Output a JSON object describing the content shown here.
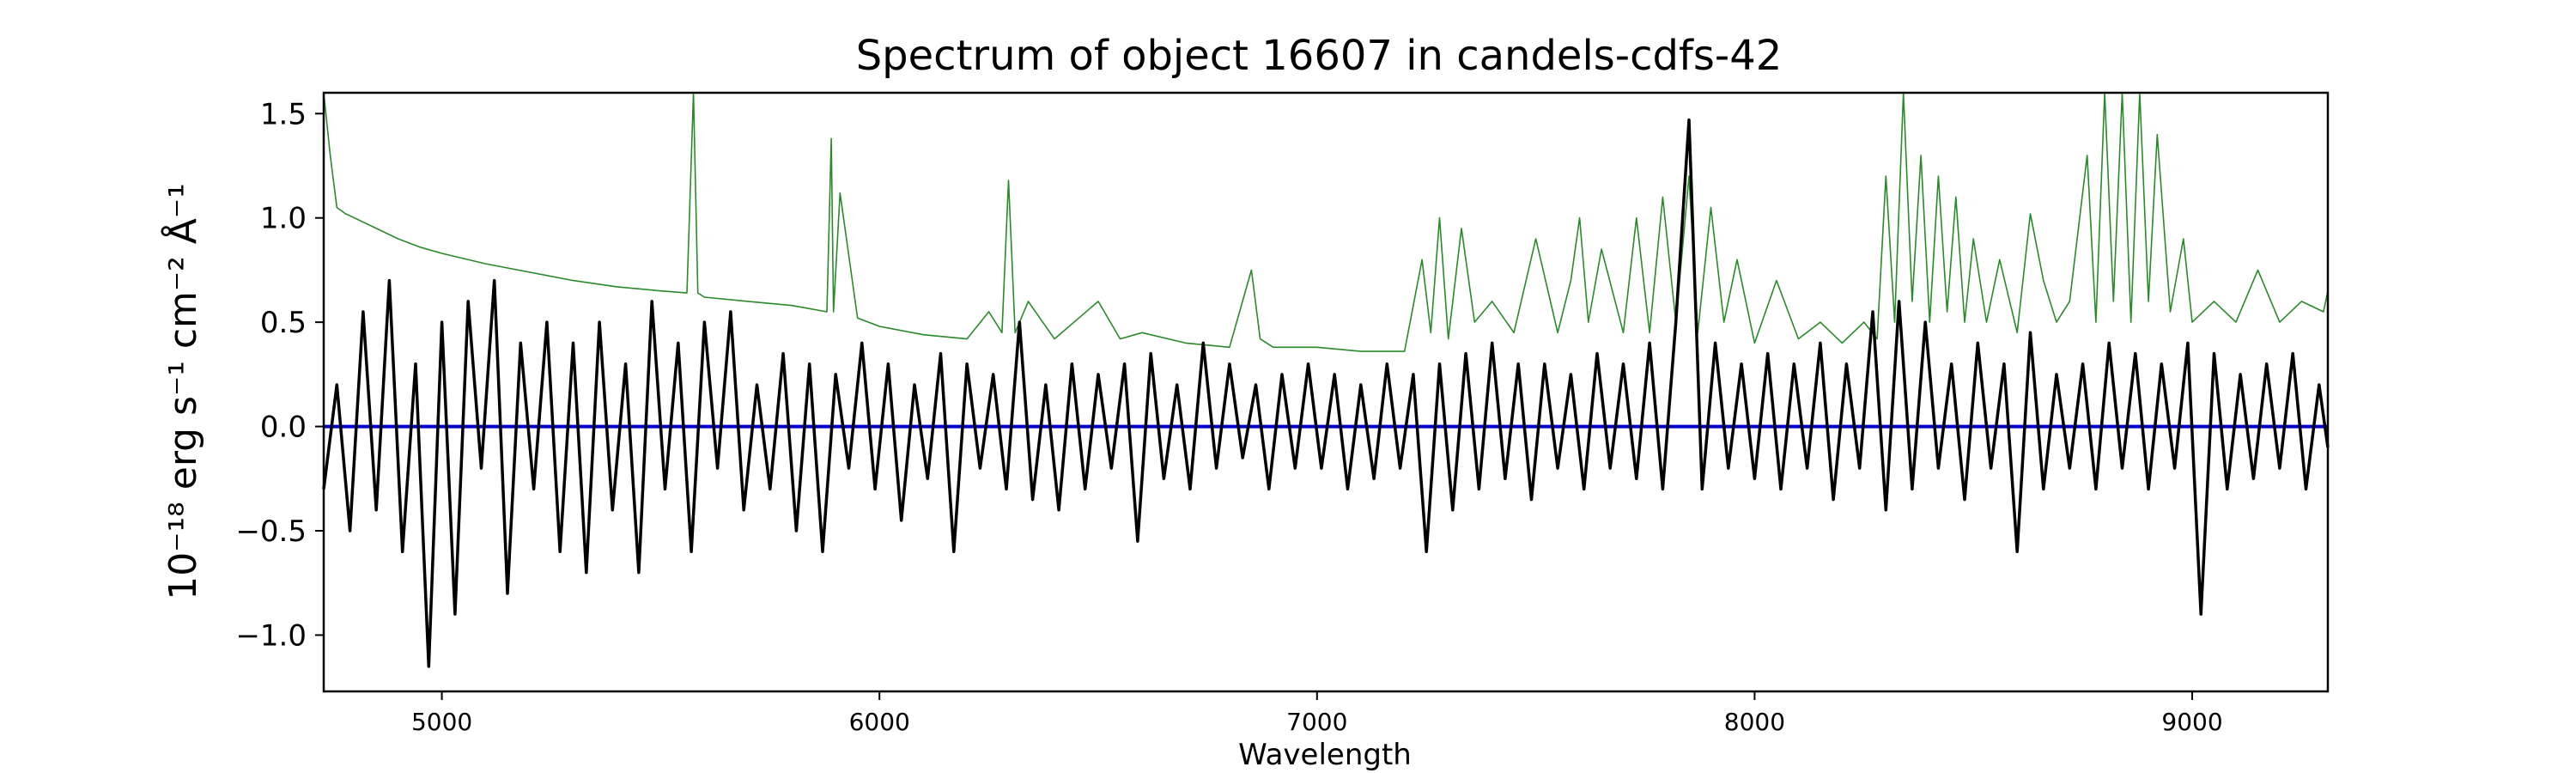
{
  "chart_data": {
    "type": "line",
    "title": "Spectrum of object 16607 in candels-cdfs-42",
    "xlabel": "Wavelength",
    "ylabel": "10⁻¹⁸ erg s⁻¹ cm⁻² Å⁻¹",
    "xlim": [
      4730,
      9310
    ],
    "ylim": [
      -1.27,
      1.6
    ],
    "xticks": [
      5000,
      6000,
      7000,
      8000,
      9000
    ],
    "yticks": [
      -1.0,
      -0.5,
      0.0,
      0.5,
      1.0,
      1.5
    ],
    "grid": false,
    "series": [
      {
        "color": "#000000",
        "x": [
          4730,
          4760,
          4790,
          4820,
          4850,
          4880,
          4910,
          4940,
          4970,
          5000,
          5030,
          5060,
          5090,
          5120,
          5150,
          5180,
          5210,
          5240,
          5270,
          5300,
          5330,
          5360,
          5390,
          5420,
          5450,
          5480,
          5510,
          5540,
          5570,
          5600,
          5630,
          5660,
          5690,
          5720,
          5750,
          5780,
          5810,
          5840,
          5870,
          5900,
          5930,
          5960,
          5990,
          6020,
          6050,
          6080,
          6110,
          6140,
          6170,
          6200,
          6230,
          6260,
          6290,
          6320,
          6350,
          6380,
          6410,
          6440,
          6470,
          6500,
          6530,
          6560,
          6590,
          6620,
          6650,
          6680,
          6710,
          6740,
          6770,
          6800,
          6830,
          6860,
          6890,
          6920,
          6950,
          6980,
          7010,
          7040,
          7070,
          7100,
          7130,
          7160,
          7190,
          7220,
          7250,
          7280,
          7310,
          7340,
          7370,
          7400,
          7430,
          7460,
          7490,
          7520,
          7550,
          7580,
          7610,
          7640,
          7670,
          7700,
          7730,
          7760,
          7790,
          7820,
          7850,
          7880,
          7910,
          7940,
          7970,
          8000,
          8030,
          8060,
          8090,
          8120,
          8150,
          8180,
          8210,
          8240,
          8270,
          8300,
          8330,
          8360,
          8390,
          8420,
          8450,
          8480,
          8510,
          8540,
          8570,
          8600,
          8630,
          8660,
          8690,
          8720,
          8750,
          8780,
          8810,
          8840,
          8870,
          8900,
          8930,
          8960,
          8990,
          9020,
          9050,
          9080,
          9110,
          9140,
          9170,
          9200,
          9230,
          9260,
          9290,
          9310
        ],
        "y": [
          -0.3,
          0.2,
          -0.5,
          0.55,
          -0.4,
          0.7,
          -0.6,
          0.3,
          -1.15,
          0.5,
          -0.9,
          0.6,
          -0.2,
          0.7,
          -0.8,
          0.4,
          -0.3,
          0.5,
          -0.6,
          0.4,
          -0.7,
          0.5,
          -0.4,
          0.3,
          -0.7,
          0.6,
          -0.3,
          0.4,
          -0.6,
          0.5,
          -0.2,
          0.55,
          -0.4,
          0.2,
          -0.3,
          0.35,
          -0.5,
          0.3,
          -0.6,
          0.25,
          -0.2,
          0.4,
          -0.3,
          0.3,
          -0.45,
          0.2,
          -0.25,
          0.35,
          -0.6,
          0.3,
          -0.2,
          0.25,
          -0.3,
          0.5,
          -0.35,
          0.2,
          -0.4,
          0.3,
          -0.3,
          0.25,
          -0.2,
          0.3,
          -0.55,
          0.35,
          -0.25,
          0.2,
          -0.3,
          0.4,
          -0.2,
          0.3,
          -0.15,
          0.2,
          -0.3,
          0.25,
          -0.2,
          0.3,
          -0.2,
          0.25,
          -0.3,
          0.2,
          -0.25,
          0.3,
          -0.2,
          0.25,
          -0.6,
          0.3,
          -0.4,
          0.35,
          -0.3,
          0.4,
          -0.25,
          0.3,
          -0.35,
          0.3,
          -0.2,
          0.25,
          -0.3,
          0.35,
          -0.2,
          0.3,
          -0.25,
          0.4,
          -0.3,
          0.5,
          1.47,
          -0.3,
          0.4,
          -0.2,
          0.3,
          -0.25,
          0.35,
          -0.3,
          0.3,
          -0.2,
          0.4,
          -0.35,
          0.3,
          -0.2,
          0.55,
          -0.4,
          0.6,
          -0.3,
          0.5,
          -0.2,
          0.3,
          -0.35,
          0.4,
          -0.2,
          0.3,
          -0.6,
          0.45,
          -0.3,
          0.25,
          -0.2,
          0.3,
          -0.3,
          0.4,
          -0.2,
          0.35,
          -0.3,
          0.3,
          -0.2,
          0.4,
          -0.9,
          0.35,
          -0.3,
          0.25,
          -0.25,
          0.3,
          -0.2,
          0.35,
          -0.3,
          0.2,
          -0.1
        ]
      },
      {
        "color": "#2a8a2a",
        "x": [
          4730,
          4745,
          4760,
          4780,
          4800,
          4850,
          4900,
          4950,
          5000,
          5100,
          5200,
          5300,
          5400,
          5500,
          5560,
          5575,
          5585,
          5600,
          5700,
          5800,
          5880,
          5890,
          5895,
          5910,
          5950,
          6000,
          6100,
          6200,
          6250,
          6280,
          6295,
          6310,
          6340,
          6400,
          6500,
          6550,
          6600,
          6700,
          6800,
          6850,
          6870,
          6900,
          7000,
          7100,
          7200,
          7240,
          7260,
          7280,
          7300,
          7330,
          7360,
          7400,
          7450,
          7500,
          7550,
          7580,
          7600,
          7620,
          7650,
          7700,
          7730,
          7760,
          7790,
          7820,
          7850,
          7870,
          7900,
          7930,
          7960,
          8000,
          8050,
          8100,
          8150,
          8200,
          8250,
          8280,
          8300,
          8320,
          8340,
          8360,
          8380,
          8400,
          8420,
          8440,
          8460,
          8480,
          8500,
          8530,
          8560,
          8600,
          8630,
          8660,
          8690,
          8720,
          8760,
          8780,
          8800,
          8820,
          8840,
          8860,
          8880,
          8900,
          8920,
          8950,
          8980,
          9000,
          9050,
          9100,
          9150,
          9200,
          9250,
          9300,
          9310
        ],
        "y": [
          1.6,
          1.3,
          1.05,
          1.02,
          1.0,
          0.95,
          0.9,
          0.86,
          0.83,
          0.78,
          0.74,
          0.7,
          0.67,
          0.65,
          0.64,
          1.6,
          0.64,
          0.62,
          0.6,
          0.58,
          0.55,
          1.38,
          0.55,
          1.12,
          0.52,
          0.48,
          0.44,
          0.42,
          0.55,
          0.45,
          1.18,
          0.45,
          0.6,
          0.42,
          0.6,
          0.42,
          0.45,
          0.4,
          0.38,
          0.75,
          0.42,
          0.38,
          0.38,
          0.36,
          0.36,
          0.8,
          0.45,
          1.0,
          0.42,
          0.95,
          0.5,
          0.6,
          0.45,
          0.9,
          0.45,
          0.7,
          1.0,
          0.5,
          0.85,
          0.45,
          1.0,
          0.45,
          1.1,
          0.5,
          1.2,
          0.45,
          1.05,
          0.5,
          0.8,
          0.4,
          0.7,
          0.42,
          0.5,
          0.4,
          0.5,
          0.42,
          1.2,
          0.5,
          1.6,
          0.6,
          1.3,
          0.5,
          1.2,
          0.55,
          1.1,
          0.5,
          0.9,
          0.5,
          0.8,
          0.45,
          1.02,
          0.7,
          0.5,
          0.6,
          1.3,
          0.5,
          1.6,
          0.6,
          1.6,
          0.5,
          1.6,
          0.6,
          1.4,
          0.55,
          0.9,
          0.5,
          0.6,
          0.5,
          0.75,
          0.5,
          0.6,
          0.55,
          0.65
        ]
      },
      {
        "color": "#0000cc",
        "x": [
          4730,
          9310
        ],
        "y": [
          0.0,
          0.0
        ]
      }
    ]
  }
}
